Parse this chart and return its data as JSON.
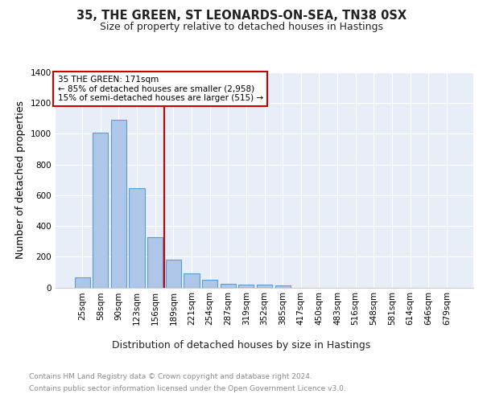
{
  "title": "35, THE GREEN, ST LEONARDS-ON-SEA, TN38 0SX",
  "subtitle": "Size of property relative to detached houses in Hastings",
  "xlabel": "Distribution of detached houses by size in Hastings",
  "ylabel": "Number of detached properties",
  "footer_line1": "Contains HM Land Registry data © Crown copyright and database right 2024.",
  "footer_line2": "Contains public sector information licensed under the Open Government Licence v3.0.",
  "categories": [
    "25sqm",
    "58sqm",
    "90sqm",
    "123sqm",
    "156sqm",
    "189sqm",
    "221sqm",
    "254sqm",
    "287sqm",
    "319sqm",
    "352sqm",
    "385sqm",
    "417sqm",
    "450sqm",
    "483sqm",
    "516sqm",
    "548sqm",
    "581sqm",
    "614sqm",
    "646sqm",
    "679sqm"
  ],
  "values": [
    65,
    1010,
    1090,
    645,
    325,
    180,
    90,
    50,
    25,
    18,
    16,
    12,
    0,
    0,
    0,
    0,
    0,
    0,
    0,
    0,
    0
  ],
  "bar_color": "#aec6e8",
  "bar_edge_color": "#5a9fd4",
  "bar_edge_width": 0.8,
  "background_color": "#e8eef8",
  "grid_color": "#ffffff",
  "ylim": [
    0,
    1400
  ],
  "yticks": [
    0,
    200,
    400,
    600,
    800,
    1000,
    1200,
    1400
  ],
  "red_line_x": 4.5,
  "annotation_title": "35 THE GREEN: 171sqm",
  "annotation_line1": "← 85% of detached houses are smaller (2,958)",
  "annotation_line2": "15% of semi-detached houses are larger (515) →",
  "annotation_box_color": "#ffffff",
  "annotation_text_color": "#000000",
  "red_color": "#cc0000",
  "title_fontsize": 10.5,
  "subtitle_fontsize": 9,
  "axis_label_fontsize": 9,
  "tick_fontsize": 7.5,
  "annotation_fontsize": 7.5,
  "footer_fontsize": 6.5
}
